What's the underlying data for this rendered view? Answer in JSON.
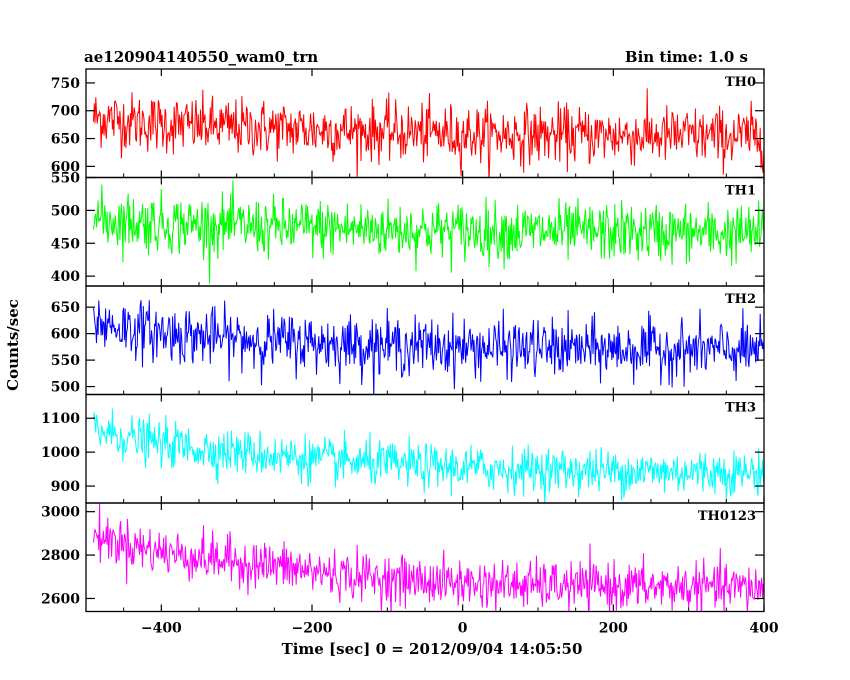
{
  "header": {
    "title": "ae120904140550_wam0_trn",
    "bin_time": "Bin time: 1.0 s"
  },
  "chart_data": {
    "type": "line",
    "xlabel": "Time [sec] 0 = 2012/09/04 14:05:50",
    "ylabel": "Counts/sec",
    "xlim": [
      -500,
      400
    ],
    "xticks": [
      -400,
      -200,
      0,
      200,
      400
    ],
    "bin_time_s": 1.0,
    "panels": [
      {
        "name": "TH0",
        "color": "#ff0000",
        "ylim": [
          580,
          775
        ],
        "yticks": [
          600,
          650,
          700,
          750
        ],
        "x": [
          -500,
          -450,
          -400,
          -350,
          -300,
          -250,
          -200,
          -150,
          -100,
          -50,
          0,
          50,
          100,
          150,
          200,
          250,
          300,
          350,
          400
        ],
        "y": [
          690,
          682,
          676,
          673,
          670,
          668,
          666,
          664,
          662,
          660,
          658,
          657,
          657,
          656,
          656,
          655,
          655,
          654,
          654
        ],
        "noise": 26
      },
      {
        "name": "TH1",
        "color": "#00ff00",
        "ylim": [
          385,
          550
        ],
        "yticks": [
          400,
          450,
          500,
          550
        ],
        "x": [
          -500,
          -450,
          -400,
          -350,
          -300,
          -250,
          -200,
          -150,
          -100,
          -50,
          0,
          50,
          100,
          150,
          200,
          250,
          300,
          350,
          400
        ],
        "y": [
          488,
          484,
          480,
          478,
          476,
          474,
          473,
          472,
          471,
          470,
          469,
          468,
          468,
          467,
          467,
          466,
          466,
          465,
          465
        ],
        "noise": 22
      },
      {
        "name": "TH2",
        "color": "#0000ff",
        "ylim": [
          485,
          690
        ],
        "yticks": [
          500,
          550,
          600,
          650
        ],
        "x": [
          -500,
          -450,
          -400,
          -350,
          -300,
          -250,
          -200,
          -150,
          -100,
          -50,
          0,
          50,
          100,
          150,
          200,
          250,
          300,
          350,
          400
        ],
        "y": [
          625,
          612,
          602,
          595,
          590,
          586,
          583,
          580,
          578,
          576,
          574,
          573,
          572,
          571,
          570,
          570,
          569,
          568,
          568
        ],
        "noise": 27
      },
      {
        "name": "TH3",
        "color": "#00ffff",
        "ylim": [
          850,
          1170
        ],
        "yticks": [
          900,
          1000,
          1100
        ],
        "x": [
          -500,
          -450,
          -400,
          -350,
          -300,
          -250,
          -200,
          -150,
          -100,
          -50,
          0,
          50,
          100,
          150,
          200,
          250,
          300,
          350,
          400
        ],
        "y": [
          1075,
          1045,
          1025,
          1010,
          1000,
          990,
          980,
          970,
          965,
          958,
          954,
          950,
          948,
          946,
          944,
          943,
          942,
          941,
          940
        ],
        "noise": 33
      },
      {
        "name": "TH0123",
        "color": "#ff00ff",
        "ylim": [
          2540,
          3040
        ],
        "yticks": [
          2600,
          2800,
          3000
        ],
        "x": [
          -500,
          -450,
          -400,
          -350,
          -300,
          -250,
          -200,
          -150,
          -100,
          -50,
          0,
          50,
          100,
          150,
          200,
          250,
          300,
          350,
          400
        ],
        "y": [
          2900,
          2855,
          2815,
          2790,
          2770,
          2750,
          2725,
          2705,
          2690,
          2680,
          2670,
          2665,
          2660,
          2658,
          2656,
          2654,
          2652,
          2650,
          2648
        ],
        "noise": 55
      }
    ]
  }
}
